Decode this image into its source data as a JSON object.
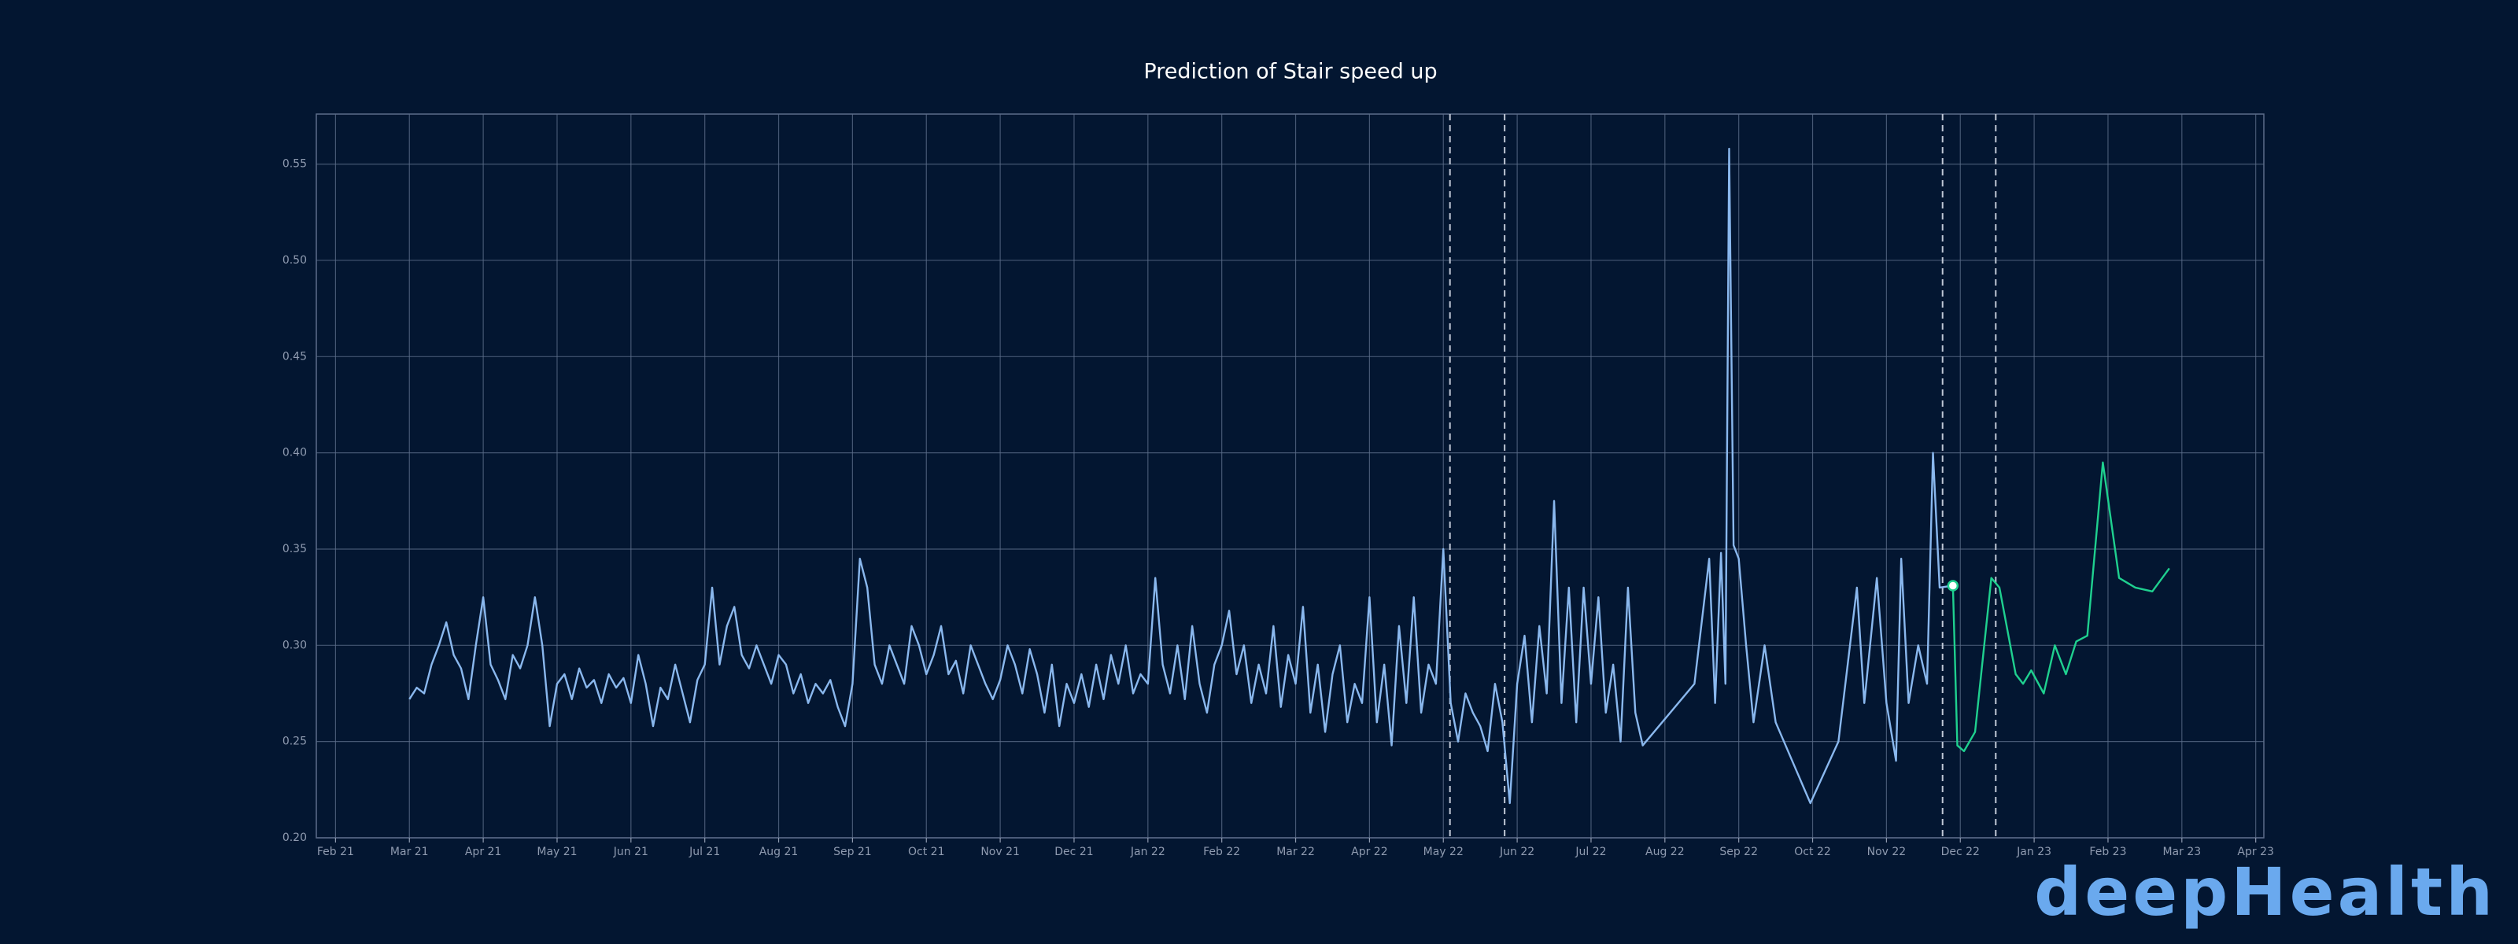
{
  "chart_data": {
    "type": "line",
    "title": "Prediction of Stair speed up",
    "xlim": [
      -0.26,
      26.11
    ],
    "ylim": [
      0.2,
      0.576
    ],
    "xticks": [
      {
        "value": 0,
        "label": "Feb 21"
      },
      {
        "value": 1,
        "label": "Mar 21"
      },
      {
        "value": 2,
        "label": "Apr 21"
      },
      {
        "value": 3,
        "label": "May 21"
      },
      {
        "value": 4,
        "label": "Jun 21"
      },
      {
        "value": 5,
        "label": "Jul 21"
      },
      {
        "value": 6,
        "label": "Aug 21"
      },
      {
        "value": 7,
        "label": "Sep 21"
      },
      {
        "value": 8,
        "label": "Oct 21"
      },
      {
        "value": 9,
        "label": "Nov 21"
      },
      {
        "value": 10,
        "label": "Dec 21"
      },
      {
        "value": 11,
        "label": "Jan 22"
      },
      {
        "value": 12,
        "label": "Feb 22"
      },
      {
        "value": 13,
        "label": "Mar 22"
      },
      {
        "value": 14,
        "label": "Apr 22"
      },
      {
        "value": 15,
        "label": "May 22"
      },
      {
        "value": 16,
        "label": "Jun 22"
      },
      {
        "value": 17,
        "label": "Jul 22"
      },
      {
        "value": 18,
        "label": "Aug 22"
      },
      {
        "value": 19,
        "label": "Sep 22"
      },
      {
        "value": 20,
        "label": "Oct 22"
      },
      {
        "value": 21,
        "label": "Nov 22"
      },
      {
        "value": 22,
        "label": "Dec 22"
      },
      {
        "value": 23,
        "label": "Jan 23"
      },
      {
        "value": 24,
        "label": "Feb 23"
      },
      {
        "value": 25,
        "label": "Mar 23"
      },
      {
        "value": 26,
        "label": "Apr 23"
      }
    ],
    "yticks": [
      {
        "value": 0.2,
        "label": "0.20"
      },
      0.25,
      {
        "value": 0.3,
        "label": "0.30"
      },
      0.35,
      {
        "value": 0.4,
        "label": "0.40"
      },
      0.45,
      {
        "value": 0.5,
        "label": "0.50"
      },
      0.55
    ],
    "grid": true,
    "vlines": [
      15.09,
      15.83,
      21.76,
      22.48
    ],
    "series": [
      {
        "color": "#8ab8ee",
        "x": [
          1.0,
          1.1,
          1.2,
          1.3,
          1.4,
          1.5,
          1.6,
          1.7,
          1.8,
          1.9,
          2.0,
          2.1,
          2.2,
          2.3,
          2.4,
          2.5,
          2.6,
          2.7,
          2.8,
          2.9,
          3.0,
          3.1,
          3.2,
          3.3,
          3.4,
          3.5,
          3.6,
          3.7,
          3.8,
          3.9,
          4.0,
          4.1,
          4.2,
          4.3,
          4.4,
          4.5,
          4.6,
          4.7,
          4.8,
          4.9,
          5.0,
          5.1,
          5.2,
          5.3,
          5.4,
          5.5,
          5.6,
          5.7,
          5.8,
          5.9,
          6.0,
          6.1,
          6.2,
          6.3,
          6.4,
          6.5,
          6.6,
          6.7,
          6.8,
          6.9,
          7.0,
          7.1,
          7.2,
          7.3,
          7.4,
          7.5,
          7.6,
          7.7,
          7.8,
          7.9,
          8.0,
          8.1,
          8.2,
          8.3,
          8.4,
          8.5,
          8.6,
          8.7,
          8.8,
          8.9,
          9.0,
          9.1,
          9.2,
          9.3,
          9.4,
          9.5,
          9.6,
          9.7,
          9.8,
          9.9,
          10.0,
          10.1,
          10.2,
          10.3,
          10.4,
          10.5,
          10.6,
          10.7,
          10.8,
          10.9,
          11.0,
          11.1,
          11.2,
          11.3,
          11.4,
          11.5,
          11.6,
          11.7,
          11.8,
          11.9,
          12.0,
          12.1,
          12.2,
          12.3,
          12.4,
          12.5,
          12.6,
          12.7,
          12.8,
          12.9,
          13.0,
          13.1,
          13.2,
          13.3,
          13.4,
          13.5,
          13.6,
          13.7,
          13.8,
          13.9,
          14.0,
          14.1,
          14.2,
          14.3,
          14.4,
          14.5,
          14.6,
          14.7,
          14.8,
          14.9,
          15.0,
          15.1,
          15.2,
          15.3,
          15.4,
          15.5,
          15.6,
          15.7,
          15.8,
          15.9,
          16.0,
          16.1,
          16.2,
          16.3,
          16.4,
          16.5,
          16.6,
          16.7,
          16.8,
          16.9,
          17.0,
          17.1,
          17.2,
          17.3,
          17.4,
          17.5,
          17.6,
          17.7,
          18.4,
          18.6,
          18.68,
          18.76,
          18.82,
          18.87,
          18.93,
          19.0,
          19.1,
          19.2,
          19.35,
          19.5,
          19.97,
          20.35,
          20.6,
          20.7,
          20.87,
          21.0,
          21.13,
          21.2,
          21.3,
          21.43,
          21.55,
          21.63,
          21.72,
          21.9
        ],
        "values": [
          0.272,
          0.278,
          0.275,
          0.29,
          0.3,
          0.312,
          0.295,
          0.288,
          0.272,
          0.3,
          0.325,
          0.29,
          0.282,
          0.272,
          0.295,
          0.288,
          0.3,
          0.325,
          0.3,
          0.258,
          0.28,
          0.285,
          0.272,
          0.288,
          0.278,
          0.282,
          0.27,
          0.285,
          0.278,
          0.283,
          0.27,
          0.295,
          0.28,
          0.258,
          0.278,
          0.272,
          0.29,
          0.275,
          0.26,
          0.282,
          0.29,
          0.33,
          0.29,
          0.31,
          0.32,
          0.295,
          0.288,
          0.3,
          0.29,
          0.28,
          0.295,
          0.29,
          0.275,
          0.285,
          0.27,
          0.28,
          0.275,
          0.282,
          0.268,
          0.258,
          0.28,
          0.345,
          0.33,
          0.29,
          0.28,
          0.3,
          0.29,
          0.28,
          0.31,
          0.3,
          0.285,
          0.295,
          0.31,
          0.285,
          0.292,
          0.275,
          0.3,
          0.29,
          0.28,
          0.272,
          0.282,
          0.3,
          0.29,
          0.275,
          0.298,
          0.285,
          0.265,
          0.29,
          0.258,
          0.28,
          0.27,
          0.285,
          0.268,
          0.29,
          0.272,
          0.295,
          0.28,
          0.3,
          0.275,
          0.285,
          0.28,
          0.335,
          0.29,
          0.275,
          0.3,
          0.272,
          0.31,
          0.28,
          0.265,
          0.29,
          0.3,
          0.318,
          0.285,
          0.3,
          0.27,
          0.29,
          0.275,
          0.31,
          0.268,
          0.295,
          0.28,
          0.32,
          0.265,
          0.29,
          0.255,
          0.285,
          0.3,
          0.26,
          0.28,
          0.27,
          0.325,
          0.26,
          0.29,
          0.248,
          0.31,
          0.27,
          0.325,
          0.265,
          0.29,
          0.28,
          0.35,
          0.27,
          0.25,
          0.275,
          0.265,
          0.258,
          0.245,
          0.28,
          0.26,
          0.218,
          0.28,
          0.305,
          0.26,
          0.31,
          0.275,
          0.375,
          0.27,
          0.33,
          0.26,
          0.33,
          0.28,
          0.325,
          0.265,
          0.29,
          0.25,
          0.33,
          0.265,
          0.248,
          0.28,
          0.345,
          0.27,
          0.348,
          0.28,
          0.558,
          0.352,
          0.345,
          0.3,
          0.26,
          0.3,
          0.26,
          0.218,
          0.25,
          0.33,
          0.27,
          0.335,
          0.27,
          0.24,
          0.345,
          0.27,
          0.3,
          0.28,
          0.4,
          0.33,
          0.331
        ]
      },
      {
        "color": "#1fd08f",
        "marker_at_start": true,
        "x": [
          21.9,
          21.96,
          22.05,
          22.2,
          22.42,
          22.53,
          22.75,
          22.85,
          22.96,
          23.13,
          23.28,
          23.43,
          23.57,
          23.72,
          23.93,
          24.15,
          24.37,
          24.6,
          24.83
        ],
        "values": [
          0.331,
          0.248,
          0.245,
          0.255,
          0.335,
          0.33,
          0.285,
          0.28,
          0.287,
          0.275,
          0.3,
          0.285,
          0.302,
          0.305,
          0.395,
          0.335,
          0.33,
          0.328,
          0.34
        ]
      }
    ]
  },
  "logo": "deepHealth"
}
